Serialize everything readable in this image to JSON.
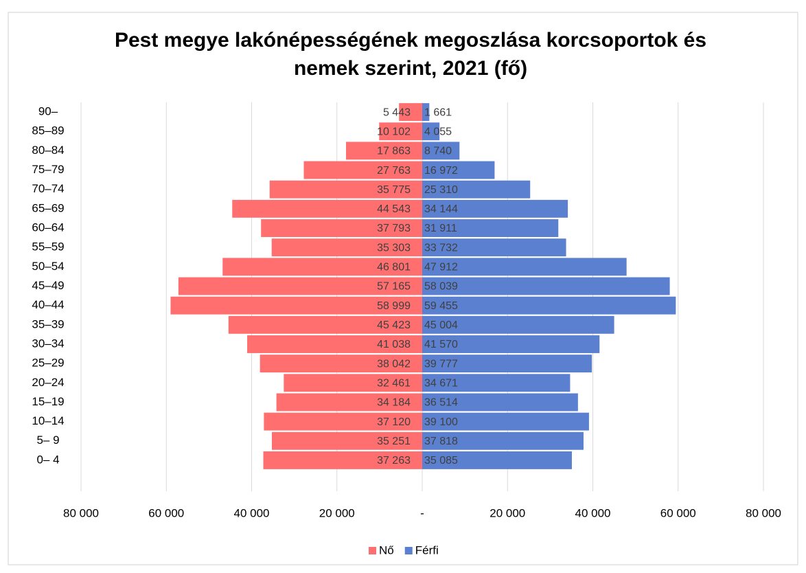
{
  "chart_data": {
    "type": "pyramid",
    "title": [
      "Pest megye lakónépességének megoszlása korcsoportok és",
      "nemek szerint, 2021 (fő)"
    ],
    "categories": [
      "0– 4",
      "5– 9",
      "10–14",
      "15–19",
      "20–24",
      "25–29",
      "30–34",
      "35–39",
      "40–44",
      "45–49",
      "50–54",
      "55–59",
      "60–64",
      "65–69",
      "70–74",
      "75–79",
      "80–84",
      "85–89",
      "90–"
    ],
    "series": [
      {
        "name": "Nő",
        "color": "#ff6f6f",
        "values": [
          -37263,
          -35251,
          -37120,
          -34184,
          -32461,
          -38042,
          -41038,
          -45423,
          -58999,
          -57165,
          -46801,
          -35303,
          -37793,
          -44543,
          -35775,
          -27763,
          -17863,
          -10102,
          -5443
        ],
        "value_labels": [
          "37 263",
          "35 251",
          "37 120",
          "34 184",
          "32 461",
          "38 042",
          "41 038",
          "45 423",
          "58 999",
          "57 165",
          "46 801",
          "35 303",
          "37 793",
          "44 543",
          "35 775",
          "27 763",
          "17 863",
          "10 102",
          "5 443"
        ]
      },
      {
        "name": "Férfi",
        "color": "#5b80cf",
        "values": [
          35085,
          37818,
          39100,
          36514,
          34671,
          39777,
          41570,
          45004,
          59455,
          58039,
          47912,
          33732,
          31911,
          34144,
          25310,
          16972,
          8740,
          4055,
          1661
        ],
        "value_labels": [
          "35 085",
          "37 818",
          "39 100",
          "36 514",
          "34 671",
          "39 777",
          "41 570",
          "45 004",
          "59 455",
          "58 039",
          "47 912",
          "33 732",
          "31 911",
          "34 144",
          "25 310",
          "16 972",
          "8 740",
          "4 055",
          "1 661"
        ]
      }
    ],
    "xlim": [
      -80000,
      80000
    ],
    "xticks": [
      {
        "value": -80000,
        "label": "80 000"
      },
      {
        "value": -60000,
        "label": "60 000"
      },
      {
        "value": -40000,
        "label": "40 000"
      },
      {
        "value": -20000,
        "label": "20 000"
      },
      {
        "value": 0,
        "label": "-"
      },
      {
        "value": 20000,
        "label": "20 000"
      },
      {
        "value": 40000,
        "label": "40 000"
      },
      {
        "value": 60000,
        "label": "60 000"
      },
      {
        "value": 80000,
        "label": "80 000"
      }
    ],
    "grid": true,
    "legend": "bottom"
  }
}
